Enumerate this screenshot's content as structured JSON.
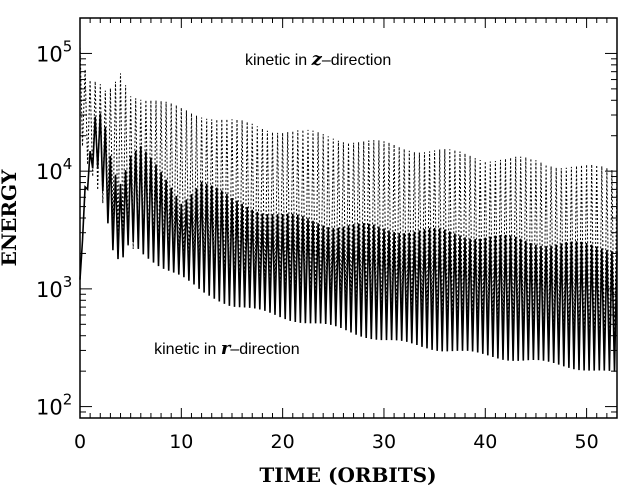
{
  "chart_data": {
    "type": "line",
    "title": "",
    "xlabel": "TIME (ORBITS)",
    "ylabel": "ENERGY",
    "xlim": [
      0,
      53
    ],
    "ylim": [
      80,
      200000
    ],
    "yscale": "log",
    "grid": false,
    "legend": "none",
    "x_ticks": [
      {
        "value": 0,
        "label": "0"
      },
      {
        "value": 10,
        "label": "10"
      },
      {
        "value": 20,
        "label": "20"
      },
      {
        "value": 30,
        "label": "30"
      },
      {
        "value": 40,
        "label": "40"
      },
      {
        "value": 50,
        "label": "50"
      }
    ],
    "y_ticks": [
      {
        "value": 100,
        "base": "10",
        "exp": "2"
      },
      {
        "value": 1000,
        "base": "10",
        "exp": "3"
      },
      {
        "value": 10000,
        "base": "10",
        "exp": "4"
      },
      {
        "value": 100000,
        "base": "10",
        "exp": "5"
      }
    ],
    "annotations": [
      {
        "text": "kinetic in ",
        "var": "z",
        "suffix": "–direction",
        "x": 23.5,
        "y": 80000
      },
      {
        "text": "kinetic in ",
        "var": "r",
        "suffix": "–direction",
        "x": 14.5,
        "y": 280
      }
    ],
    "series": [
      {
        "name": "kinetic in z–direction",
        "style": "dotted",
        "color": "#000000",
        "x": [
          0,
          0.3,
          0.6,
          1.0,
          1.5,
          2.0,
          2.6,
          3.2,
          4.0,
          5.0,
          6.0,
          8.0,
          10,
          12,
          15,
          20,
          25,
          30,
          35,
          40,
          45,
          50,
          53
        ],
        "y_max": [
          130000,
          90000,
          70000,
          60000,
          58000,
          55000,
          48000,
          55000,
          75000,
          50000,
          46000,
          40000,
          36000,
          33000,
          28000,
          24000,
          21000,
          18000,
          16000,
          14000,
          13000,
          11500,
          11000
        ],
        "y_min": [
          20000,
          15000,
          12000,
          10000,
          8000,
          6000,
          4500,
          3500,
          2500,
          2000,
          2000,
          1700,
          1500,
          1200,
          900,
          800,
          650,
          500,
          450,
          380,
          330,
          280,
          260
        ]
      },
      {
        "name": "kinetic in r–direction",
        "style": "solid",
        "color": "#000000",
        "x": [
          0,
          0.3,
          0.6,
          1.0,
          1.5,
          2.0,
          2.6,
          3.2,
          4.0,
          5.0,
          6.0,
          8.0,
          10,
          12,
          15,
          20,
          25,
          30,
          35,
          40,
          45,
          50,
          53
        ],
        "y_max": [
          1200,
          4000,
          10000,
          15000,
          30000,
          33000,
          25000,
          12000,
          9000,
          15000,
          17000,
          10000,
          6000,
          9000,
          6000,
          4500,
          3800,
          3500,
          3300,
          3000,
          2700,
          2500,
          2400
        ],
        "y_min": [
          1200,
          3000,
          6000,
          9000,
          12000,
          9000,
          4000,
          2000,
          1500,
          2500,
          2000,
          1500,
          1200,
          900,
          700,
          550,
          450,
          350,
          300,
          260,
          230,
          200,
          180
        ]
      }
    ]
  }
}
